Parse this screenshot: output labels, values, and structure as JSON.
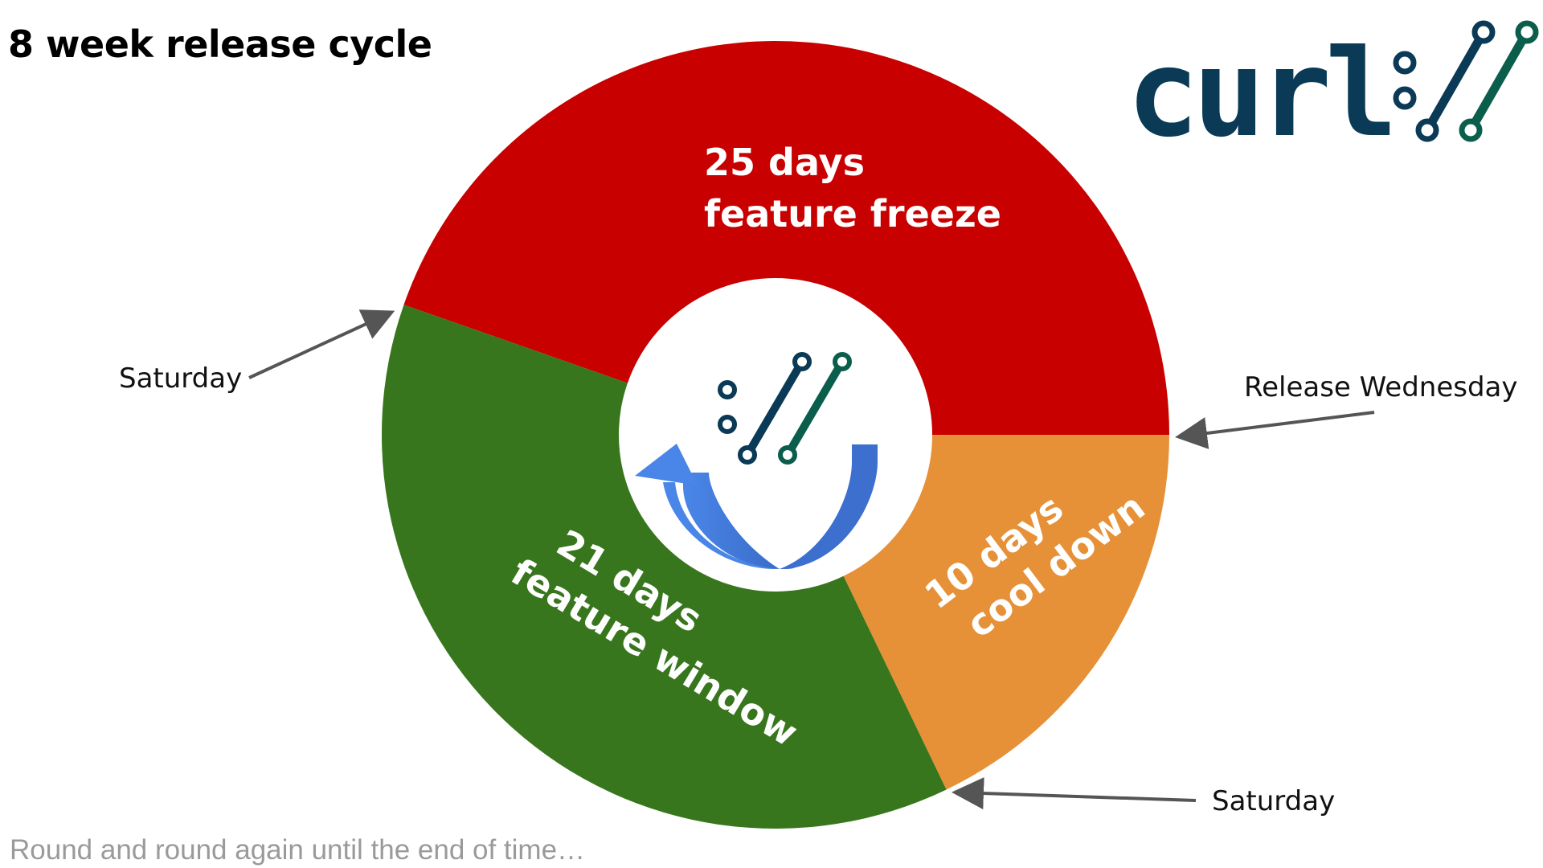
{
  "title": "8 week release cycle",
  "footer": "Round and round again until the end of time…",
  "logo": {
    "text": "curl",
    "icon": "curl-slashes-icon"
  },
  "colors": {
    "feature_freeze": "#c80000",
    "feature_window": "#38761d",
    "cool_down": "#e69138",
    "logo_navy": "#0a3a55",
    "logo_teal": "#0b5e4c",
    "arrow_blue": "#3c78d8",
    "callout_arrow": "#555555"
  },
  "segments": [
    {
      "id": "feature_freeze",
      "days": 25,
      "line1": "25 days",
      "line2": "feature freeze"
    },
    {
      "id": "cool_down",
      "days": 10,
      "line1": "10 days",
      "line2": "cool down"
    },
    {
      "id": "feature_window",
      "days": 21,
      "line1": "21 days",
      "line2": "feature window"
    }
  ],
  "callouts": {
    "release": "Release Wednesday",
    "saturday_bottom": "Saturday",
    "saturday_left": "Saturday"
  },
  "center_icon": "cycle-arrow-icon"
}
